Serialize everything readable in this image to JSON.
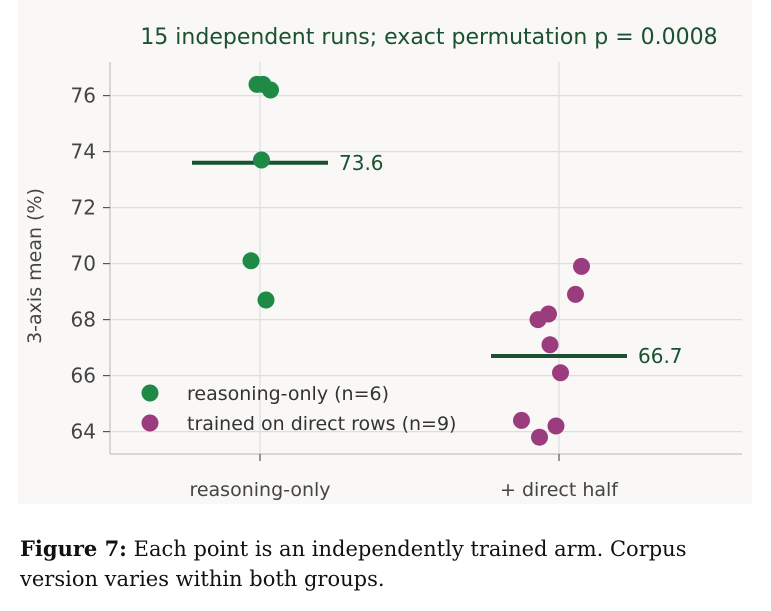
{
  "chart_data": {
    "type": "scatter",
    "title": "15 independent runs; exact permutation p = 0.0008",
    "xlabel": "",
    "ylabel": "3-axis mean (%)",
    "categories": [
      "reasoning-only",
      "+ direct half"
    ],
    "ylim": [
      63.2,
      77.2
    ],
    "yticks": [
      64,
      66,
      68,
      70,
      72,
      74,
      76
    ],
    "grid": true,
    "legend_position": "lower-left",
    "series": [
      {
        "name": "reasoning-only (n=6)",
        "category": "reasoning-only",
        "color": "#1e8a45",
        "values": [
          76.4,
          76.4,
          76.2,
          73.7,
          70.1,
          68.7
        ],
        "jitter": [
          -0.02,
          0.02,
          0.07,
          0.01,
          -0.06,
          0.04
        ],
        "mean": 73.6,
        "mean_label": "73.6"
      },
      {
        "name": "trained on direct rows (n=9)",
        "category": "+ direct half",
        "color": "#9b3c7f",
        "values": [
          69.9,
          68.9,
          68.2,
          68.0,
          67.1,
          66.1,
          64.4,
          64.2,
          63.8
        ],
        "jitter": [
          0.15,
          0.11,
          -0.07,
          -0.14,
          -0.06,
          0.01,
          -0.25,
          -0.02,
          -0.13
        ],
        "mean": 66.7,
        "mean_label": "66.7"
      }
    ],
    "mean_line_color": "#1a5130",
    "title_color": "#1a5130"
  },
  "caption": {
    "label": "Figure 7:",
    "text": "Each point is an independently trained arm. Corpus version varies within both groups."
  }
}
